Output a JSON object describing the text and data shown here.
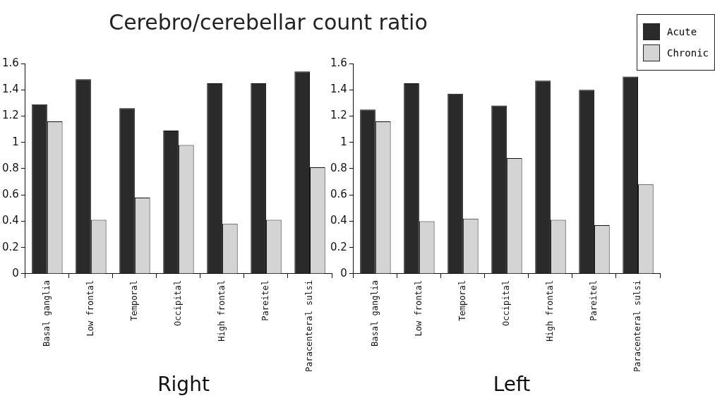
{
  "chart_data": [
    {
      "type": "bar",
      "title": "Cerebro/cerebellar count ratio",
      "xlabel": "Right",
      "categories": [
        "Basal ganglia",
        "Low frontal",
        "Temporal",
        "Occipital",
        "High frontal",
        "Pareitel",
        "Paracenteral sulsi"
      ],
      "series": [
        {
          "color": "#2a2a2a",
          "values": [
            1.29,
            1.48,
            1.26,
            1.09,
            1.45,
            1.45,
            1.54
          ]
        },
        {
          "color": "#d4d4d4",
          "values": [
            1.16,
            0.41,
            0.58,
            0.98,
            0.38,
            0.41,
            0.81
          ]
        }
      ],
      "ylim": [
        0,
        1.6
      ],
      "yticks": [
        0,
        0.2,
        0.4,
        0.6,
        0.8,
        1,
        1.2,
        1.4,
        1.6
      ],
      "grid": false
    },
    {
      "type": "bar",
      "xlabel": "Left",
      "categories": [
        "Basal ganglia",
        "Low frontal",
        "Temporal",
        "Occipital",
        "High frontal",
        "Pareitel",
        "Paracenteral sulsi"
      ],
      "series": [
        {
          "name": "Acute",
          "color": "#2a2a2a",
          "values": [
            1.25,
            1.45,
            1.37,
            1.28,
            1.47,
            1.4,
            1.5
          ]
        },
        {
          "name": "Chronic",
          "color": "#d4d4d4",
          "values": [
            1.16,
            0.4,
            0.42,
            0.88,
            0.41,
            0.37,
            0.68
          ]
        }
      ],
      "ylim": [
        0,
        1.6
      ],
      "yticks": [
        0,
        0.2,
        0.4,
        0.6,
        0.8,
        1,
        1.2,
        1.4,
        1.6
      ],
      "grid": false,
      "legend": "top right"
    }
  ]
}
